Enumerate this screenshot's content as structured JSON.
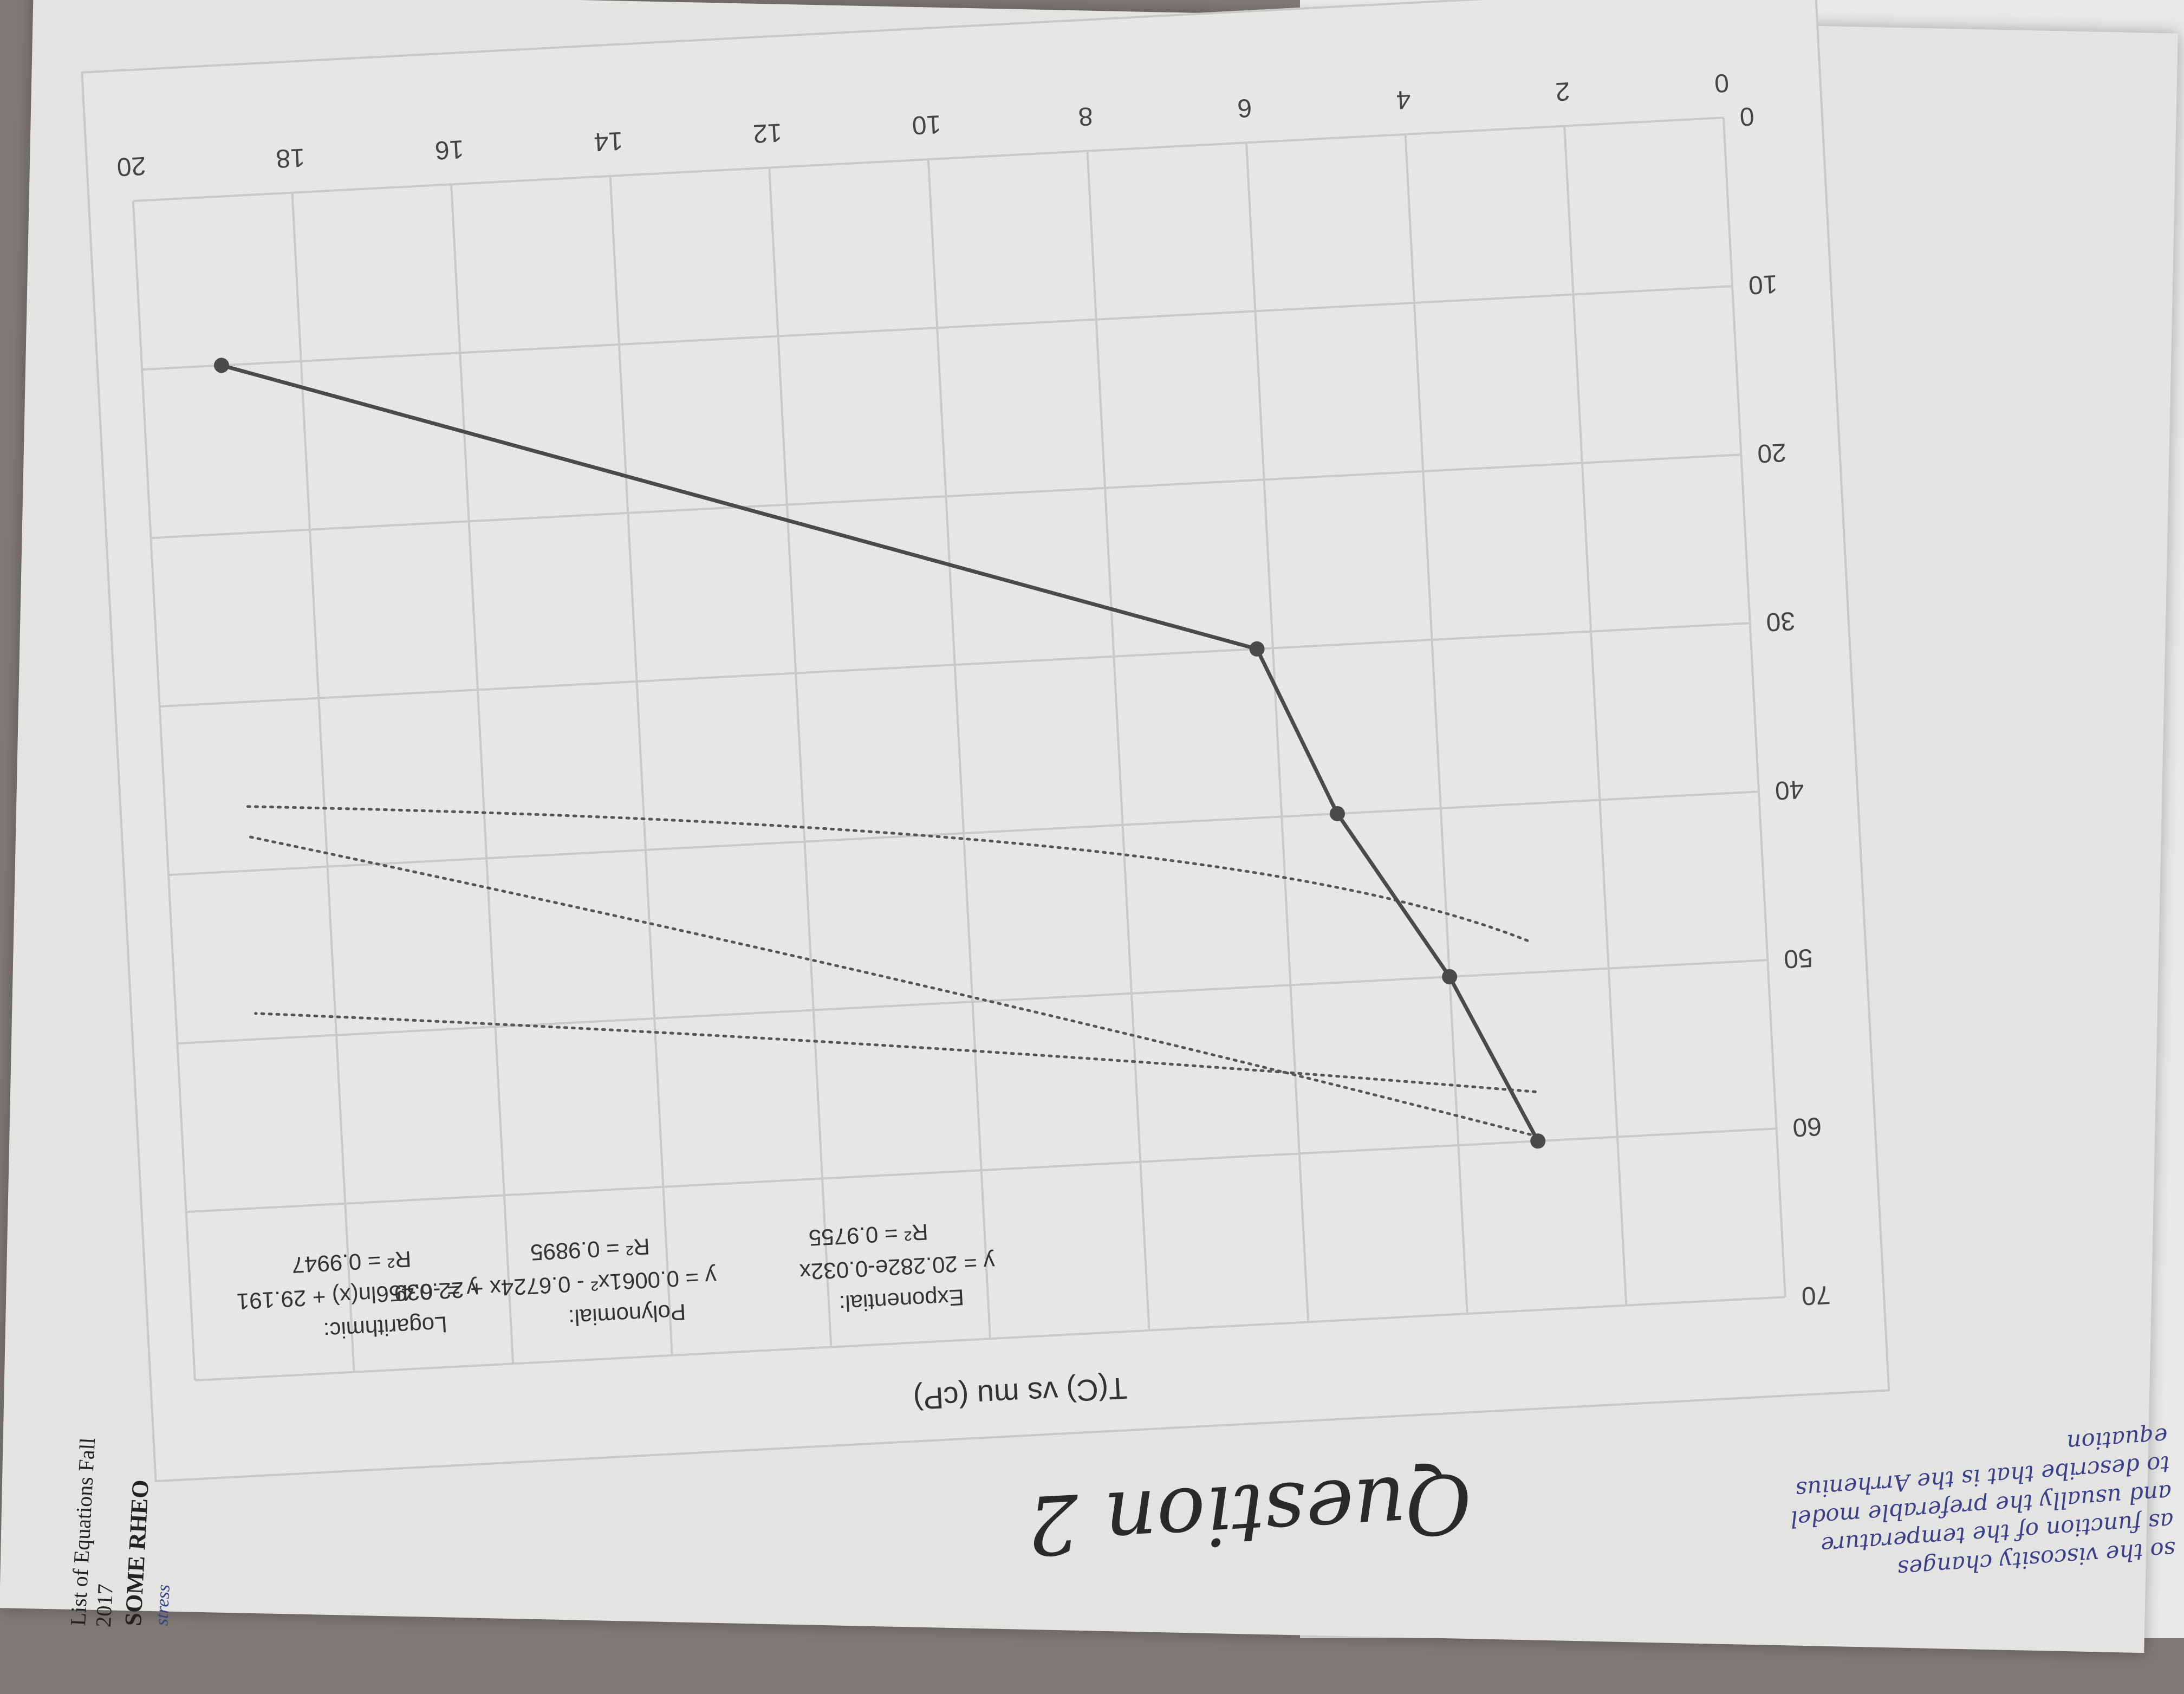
{
  "page": {
    "question_heading": "Question 2",
    "handwritten_note": [
      "so the viscosity changes",
      "as function of the temperature",
      "and usually the preferable model",
      "to describe that is the Arrhenius",
      "equation"
    ],
    "side_doc_title": "List of Equations Fall 2017",
    "side_doc_section": "SOME RHEO",
    "side_doc_fragment": "stress"
  },
  "chart_data": {
    "type": "scatter",
    "title": "T(C) vs mu (cP)",
    "xlabel": "",
    "ylabel": "",
    "xlim": [
      0,
      20
    ],
    "ylim": [
      0,
      70
    ],
    "x_ticks": [
      "0",
      "2",
      "4",
      "6",
      "8",
      "10",
      "12",
      "14",
      "16",
      "18",
      "20"
    ],
    "y_ticks": [
      "0",
      "10",
      "20",
      "30",
      "40",
      "50",
      "60",
      "70"
    ],
    "grid": true,
    "series": [
      {
        "values": [
          {
            "x": 3.0,
            "y": 60
          },
          {
            "x": 4.0,
            "y": 50
          },
          {
            "x": 5.3,
            "y": 40
          },
          {
            "x": 6.2,
            "y": 30
          },
          {
            "x": 19.0,
            "y": 10
          }
        ]
      }
    ],
    "trendlines": [
      {
        "label": "Logarithmic:",
        "equation": "y = -6.456ln(x) + 29.191",
        "r2": "R² = 0.9947"
      },
      {
        "label": "Polynomial:",
        "equation": "y = 0.0061x² - 0.6724x + 22.039",
        "r2": "R² = 0.9895"
      },
      {
        "label": "Exponential:",
        "equation": "y = 20.282e-0.032x",
        "r2": "R² = 0.9755"
      }
    ]
  }
}
